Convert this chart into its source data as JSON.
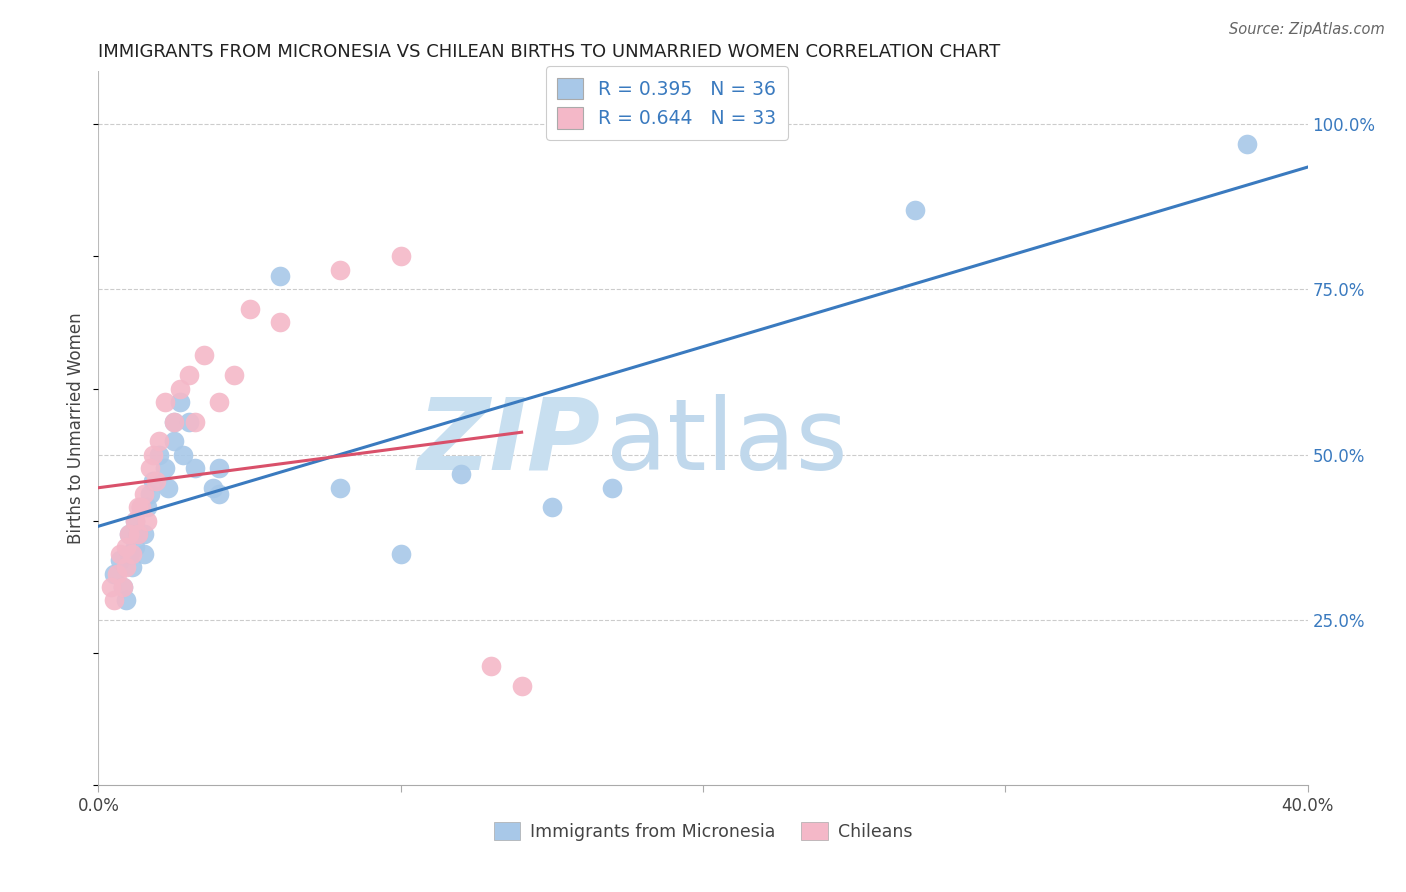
{
  "title": "IMMIGRANTS FROM MICRONESIA VS CHILEAN BIRTHS TO UNMARRIED WOMEN CORRELATION CHART",
  "source": "Source: ZipAtlas.com",
  "ylabel": "Births to Unmarried Women",
  "xlim": [
    0.0,
    0.4
  ],
  "ylim": [
    0.0,
    1.08
  ],
  "yticks_right": [
    0.25,
    0.5,
    0.75,
    1.0
  ],
  "ytick_labels_right": [
    "25.0%",
    "50.0%",
    "75.0%",
    "100.0%"
  ],
  "blue_color": "#a8c8e8",
  "pink_color": "#f4b8c8",
  "blue_line_color": "#3a7abf",
  "pink_line_color": "#d9506a",
  "R_blue": 0.395,
  "N_blue": 36,
  "R_pink": 0.644,
  "N_pink": 33,
  "background_color": "#ffffff",
  "grid_color": "#cccccc",
  "blue_scatter_x": [
    0.005,
    0.007,
    0.008,
    0.009,
    0.01,
    0.01,
    0.011,
    0.012,
    0.012,
    0.013,
    0.014,
    0.015,
    0.015,
    0.016,
    0.017,
    0.018,
    0.02,
    0.022,
    0.023,
    0.025,
    0.025,
    0.027,
    0.028,
    0.03,
    0.032,
    0.038,
    0.04,
    0.04,
    0.06,
    0.08,
    0.1,
    0.12,
    0.15,
    0.17,
    0.27,
    0.38
  ],
  "blue_scatter_y": [
    0.32,
    0.34,
    0.3,
    0.28,
    0.35,
    0.38,
    0.33,
    0.36,
    0.4,
    0.38,
    0.42,
    0.35,
    0.38,
    0.42,
    0.44,
    0.46,
    0.5,
    0.48,
    0.45,
    0.52,
    0.55,
    0.58,
    0.5,
    0.55,
    0.48,
    0.45,
    0.48,
    0.44,
    0.77,
    0.45,
    0.35,
    0.47,
    0.42,
    0.45,
    0.87,
    0.97
  ],
  "pink_scatter_x": [
    0.004,
    0.005,
    0.006,
    0.007,
    0.008,
    0.009,
    0.009,
    0.01,
    0.011,
    0.012,
    0.013,
    0.013,
    0.014,
    0.015,
    0.016,
    0.017,
    0.018,
    0.019,
    0.02,
    0.022,
    0.025,
    0.027,
    0.03,
    0.032,
    0.035,
    0.04,
    0.045,
    0.05,
    0.06,
    0.08,
    0.1,
    0.13,
    0.14
  ],
  "pink_scatter_y": [
    0.3,
    0.28,
    0.32,
    0.35,
    0.3,
    0.33,
    0.36,
    0.38,
    0.35,
    0.4,
    0.42,
    0.38,
    0.42,
    0.44,
    0.4,
    0.48,
    0.5,
    0.46,
    0.52,
    0.58,
    0.55,
    0.6,
    0.62,
    0.55,
    0.65,
    0.58,
    0.62,
    0.72,
    0.7,
    0.78,
    0.8,
    0.18,
    0.15
  ],
  "title_fontsize": 13,
  "watermark_zip_color": "#c8dff0",
  "watermark_atlas_color": "#c0d8ec"
}
